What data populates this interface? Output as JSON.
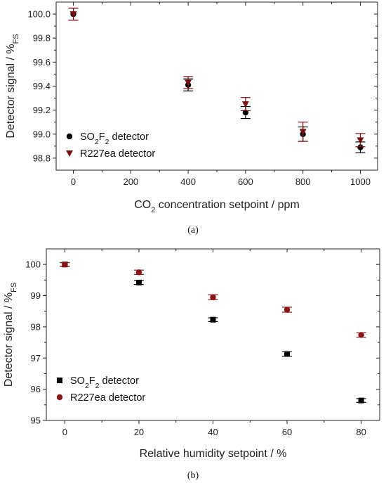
{
  "figure": {
    "captions": [
      "(a)",
      "(b)"
    ]
  },
  "chart_data": [
    {
      "type": "scatter",
      "ylabel_main": "Detector signal / %",
      "ylabel_sub": "FS",
      "xlabel_pre": "CO",
      "xlabel_sub": "2",
      "xlabel_post": " concentration setpoint / ppm",
      "xlim": [
        -60,
        1060
      ],
      "ylim": [
        98.7,
        100.1
      ],
      "xticks": [
        0,
        200,
        400,
        600,
        800,
        1000
      ],
      "yticks": [
        98.8,
        99.0,
        99.2,
        99.4,
        99.6,
        99.8,
        100.0
      ],
      "ytick_labels": [
        "98.8",
        "99.0",
        "99.2",
        "99.4",
        "99.6",
        "99.8",
        "100.0"
      ],
      "legend_position": "bottom-left",
      "series": [
        {
          "name": "SO2F2 detector",
          "name_parts": [
            "SO",
            "2",
            "F",
            "2",
            " detector"
          ],
          "marker": "circle",
          "color": "#000000",
          "x": [
            0,
            400,
            600,
            800,
            1000
          ],
          "y": [
            100.0,
            99.41,
            99.18,
            99.0,
            98.89
          ],
          "err": [
            0.05,
            0.05,
            0.05,
            0.06,
            0.045
          ]
        },
        {
          "name": "R227ea detector",
          "name_parts": [
            "R227ea detector"
          ],
          "marker": "triangle-down",
          "color": "#7b1010",
          "x": [
            0,
            400,
            600,
            800,
            1000
          ],
          "y": [
            100.0,
            99.43,
            99.25,
            99.02,
            98.95
          ],
          "err": [
            0.05,
            0.05,
            0.055,
            0.08,
            0.055
          ]
        }
      ]
    },
    {
      "type": "scatter",
      "ylabel_main": "Detector signal / %",
      "ylabel_sub": "FS",
      "xlabel_pre": "Relative humidity setpoint / %",
      "xlabel_sub": "",
      "xlabel_post": "",
      "xlim": [
        -5,
        85
      ],
      "ylim": [
        95,
        100.5
      ],
      "xticks": [
        0,
        20,
        40,
        60,
        80
      ],
      "yticks": [
        95,
        96,
        97,
        98,
        99,
        100
      ],
      "ytick_labels": [
        "95",
        "96",
        "97",
        "98",
        "99",
        "100"
      ],
      "legend_position": "bottom-left",
      "series": [
        {
          "name": "SO2F2 detector",
          "name_parts": [
            "SO",
            "2",
            "F",
            "2",
            " detector"
          ],
          "marker": "square",
          "color": "#000000",
          "x": [
            0,
            20,
            40,
            60,
            80
          ],
          "y": [
            100.0,
            99.42,
            98.23,
            97.13,
            95.64
          ],
          "err": [
            0.06,
            0.06,
            0.06,
            0.07,
            0.06
          ]
        },
        {
          "name": "R227ea detector",
          "name_parts": [
            "R227ea detector"
          ],
          "marker": "circle",
          "color": "#8b1414",
          "x": [
            0,
            20,
            40,
            60,
            80
          ],
          "y": [
            100.0,
            99.75,
            98.95,
            98.55,
            97.74
          ],
          "err": [
            0.06,
            0.07,
            0.08,
            0.08,
            0.07
          ]
        }
      ]
    }
  ]
}
